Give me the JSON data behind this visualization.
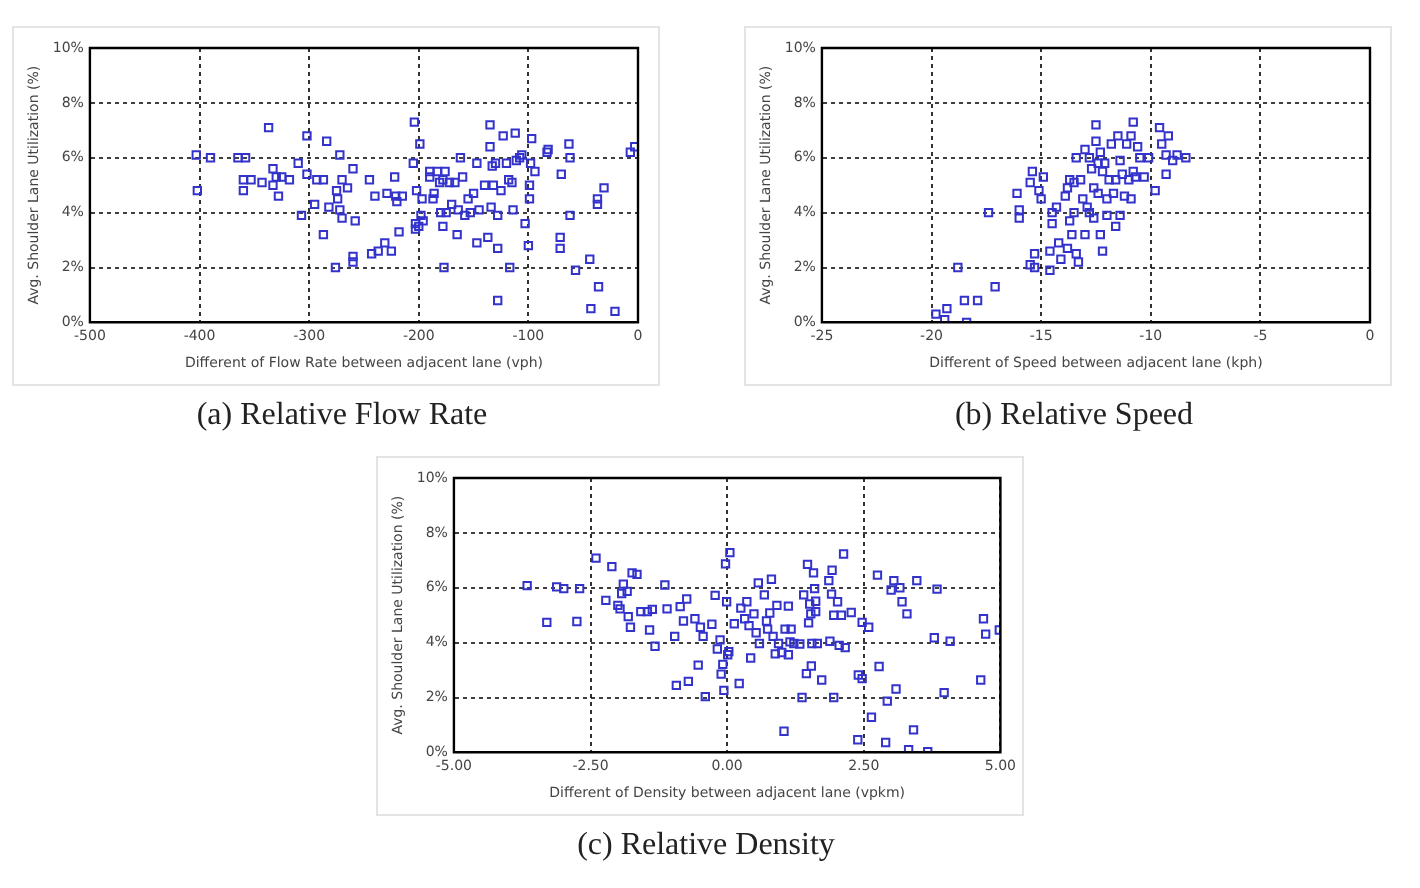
{
  "chart_data": [
    {
      "type": "scatter",
      "title": "(a) Relative Flow Rate",
      "xlabel": "Different of Flow Rate between adjacent lane (vph)",
      "ylabel": "Avg. Shoulder Lane Utilization (%)",
      "color": "#3333cc",
      "marker": "square",
      "grid": true,
      "legend": false,
      "xlim": [
        -500,
        0
      ],
      "xticks": [
        -500,
        -400,
        -300,
        -200,
        -100,
        0
      ],
      "ylim": [
        0,
        10
      ],
      "yticks": [
        {
          "value": 0,
          "label": "0%"
        },
        {
          "value": 2,
          "label": "2%"
        },
        {
          "value": 4,
          "label": "4%"
        },
        {
          "value": 6,
          "label": "6%"
        },
        {
          "value": 8,
          "label": "8%"
        },
        {
          "value": 10,
          "label": "10%"
        }
      ],
      "x": [
        -403,
        -402,
        -390,
        -365,
        -358,
        -360,
        -360,
        -353,
        -343,
        -337,
        -333,
        -333,
        -330,
        -328,
        -325,
        -318,
        -310,
        -307,
        -302,
        -302,
        -295,
        -293,
        -287,
        -287,
        -284,
        -282,
        -276,
        -275,
        -274,
        -272,
        -272,
        -270,
        -270,
        -265,
        -260,
        -260,
        -260,
        -258,
        -245,
        -243,
        -240,
        -237,
        -231,
        -229,
        -225,
        -222,
        -221,
        -220,
        -218,
        -215,
        -205,
        -204,
        -203,
        -203,
        -202,
        -200,
        -199,
        -198,
        -197,
        -196,
        -190,
        -190,
        -187,
        -186,
        -183,
        -181,
        -180,
        -178,
        -178,
        -177,
        -176,
        -175,
        -172,
        -170,
        -167,
        -165,
        -164,
        -162,
        -160,
        -158,
        -155,
        -153,
        -150,
        -147,
        -147,
        -145,
        -140,
        -137,
        -135,
        -135,
        -134,
        -133,
        -132,
        -130,
        -128,
        -128,
        -128,
        -125,
        -123,
        -120,
        -118,
        -117,
        -115,
        -114,
        -112,
        -111,
        -108,
        -106,
        -103,
        -100,
        -99,
        -99,
        -98,
        -97,
        -94,
        -83,
        -82,
        -70,
        -71,
        -71,
        -63,
        -62,
        -62,
        -57,
        -44,
        -43,
        -37,
        -37,
        -36,
        -31,
        -21,
        -7,
        -3
      ],
      "values": [
        6.1,
        4.8,
        6.0,
        6.0,
        6.0,
        4.8,
        5.2,
        5.2,
        5.1,
        7.1,
        5.6,
        5.0,
        5.3,
        4.6,
        5.3,
        5.2,
        5.8,
        3.9,
        6.8,
        5.4,
        4.3,
        5.2,
        5.2,
        3.2,
        6.6,
        4.2,
        2.0,
        4.8,
        4.5,
        6.1,
        4.1,
        3.8,
        5.2,
        4.9,
        5.6,
        2.4,
        2.2,
        3.7,
        5.2,
        2.5,
        4.6,
        2.6,
        2.9,
        4.7,
        2.6,
        5.3,
        4.6,
        4.4,
        3.3,
        4.6,
        5.8,
        7.3,
        3.6,
        3.4,
        4.8,
        3.5,
        6.5,
        3.9,
        4.5,
        3.7,
        5.3,
        5.5,
        4.5,
        4.7,
        5.5,
        5.1,
        4.0,
        3.5,
        5.2,
        2.0,
        5.5,
        4.0,
        5.1,
        4.3,
        5.1,
        3.2,
        4.1,
        6.0,
        5.3,
        3.9,
        4.5,
        4.0,
        4.7,
        5.8,
        2.9,
        4.1,
        5.0,
        3.1,
        6.4,
        7.2,
        4.2,
        5.7,
        5.0,
        5.8,
        3.9,
        2.7,
        0.8,
        4.8,
        6.8,
        5.8,
        5.2,
        2.0,
        5.1,
        4.1,
        6.9,
        5.9,
        6.0,
        6.1,
        3.6,
        2.8,
        5.0,
        4.5,
        5.8,
        6.7,
        5.5,
        6.2,
        6.3,
        5.4,
        3.1,
        2.7,
        6.5,
        6.0,
        3.9,
        1.9,
        2.3,
        0.5,
        4.5,
        4.3,
        1.3,
        4.9,
        0.4,
        6.2,
        6.4
      ]
    },
    {
      "type": "scatter",
      "title": "(b) Relative Speed",
      "xlabel": "Different of Speed between adjacent lane (kph)",
      "ylabel": "Avg. Shoulder Lane Utilization (%)",
      "color": "#3333cc",
      "marker": "square",
      "grid": true,
      "legend": false,
      "xlim": [
        -25,
        0
      ],
      "xticks": [
        -25,
        -20,
        -15,
        -10,
        -5,
        0
      ],
      "ylim": [
        0,
        10
      ],
      "yticks": [
        {
          "value": 0,
          "label": "0%"
        },
        {
          "value": 2,
          "label": "2%"
        },
        {
          "value": 4,
          "label": "4%"
        },
        {
          "value": 6,
          "label": "6%"
        },
        {
          "value": 8,
          "label": "8%"
        },
        {
          "value": 10,
          "label": "10%"
        }
      ],
      "x": [
        -19.8,
        -19.4,
        -19.3,
        -18.8,
        -18.5,
        -18.4,
        -17.9,
        -17.4,
        -17.1,
        -16.1,
        -16.0,
        -16.0,
        -15.5,
        -15.4,
        -15.5,
        -15.3,
        -15.3,
        -15.1,
        -15.0,
        -14.9,
        -14.6,
        -14.6,
        -14.5,
        -14.5,
        -14.3,
        -14.2,
        -14.1,
        -13.9,
        -13.8,
        -13.8,
        -13.7,
        -13.7,
        -13.6,
        -13.5,
        -13.5,
        -13.4,
        -13.4,
        -13.3,
        -13.2,
        -13.1,
        -13.0,
        -13.0,
        -12.9,
        -12.8,
        -12.8,
        -12.7,
        -12.6,
        -12.6,
        -12.5,
        -12.5,
        -12.4,
        -12.4,
        -12.3,
        -12.3,
        -12.2,
        -12.2,
        -12.1,
        -12.0,
        -12.0,
        -11.9,
        -11.8,
        -11.7,
        -11.6,
        -11.6,
        -11.5,
        -11.4,
        -11.4,
        -11.3,
        -11.2,
        -11.1,
        -11.0,
        -10.9,
        -10.9,
        -10.8,
        -10.8,
        -10.7,
        -10.6,
        -10.5,
        -10.3,
        -10.1,
        -9.8,
        -9.6,
        -9.5,
        -9.3,
        -9.3,
        -9.2,
        -9.0,
        -8.8,
        -8.4
      ],
      "values": [
        0.3,
        0.1,
        0.5,
        2.0,
        0.8,
        0.0,
        0.8,
        4.0,
        1.3,
        4.7,
        4.1,
        3.8,
        5.1,
        5.5,
        2.1,
        2.5,
        2.0,
        4.8,
        4.5,
        5.3,
        2.6,
        1.9,
        4.0,
        3.6,
        4.2,
        2.9,
        2.3,
        4.6,
        4.9,
        2.7,
        5.2,
        3.7,
        3.2,
        5.1,
        4.0,
        6.0,
        2.5,
        2.2,
        5.2,
        4.5,
        6.3,
        3.2,
        4.2,
        6.0,
        4.0,
        5.6,
        4.9,
        3.8,
        7.2,
        6.6,
        5.8,
        4.7,
        6.2,
        3.2,
        5.5,
        2.6,
        5.8,
        4.5,
        3.9,
        5.2,
        6.5,
        4.7,
        5.2,
        3.5,
        6.8,
        5.9,
        3.9,
        5.4,
        4.6,
        6.5,
        5.2,
        6.8,
        4.5,
        7.3,
        5.5,
        5.3,
        6.4,
        6.0,
        5.3,
        6.0,
        4.8,
        7.1,
        6.5,
        6.1,
        5.4,
        6.8,
        5.9,
        6.1,
        6.0
      ]
    },
    {
      "type": "scatter",
      "title": "(c) Relative Density",
      "xlabel": "Different of Density between adjacent lane (vpkm)",
      "ylabel": "Avg. Shoulder Lane Utilization (%)",
      "color": "#3333cc",
      "marker": "square",
      "grid": true,
      "legend": false,
      "xlim": [
        -5,
        5
      ],
      "xticks": [
        {
          "value": -5,
          "label": "-5.00"
        },
        {
          "value": -2.5,
          "label": "-2.50"
        },
        {
          "value": 0,
          "label": "0.00"
        },
        {
          "value": 2.5,
          "label": "2.50"
        },
        {
          "value": 5,
          "label": "5.00"
        }
      ],
      "ylim": [
        0,
        10
      ],
      "yticks": [
        {
          "value": 0,
          "label": "0%"
        },
        {
          "value": 2,
          "label": "2%"
        },
        {
          "value": 4,
          "label": "4%"
        },
        {
          "value": 6,
          "label": "6%"
        },
        {
          "value": 8,
          "label": "8%"
        },
        {
          "value": 10,
          "label": "10%"
        }
      ],
      "x": [
        -3.66,
        -3.3,
        -3.12,
        -2.99,
        -2.75,
        -2.7,
        -2.4,
        -2.22,
        -2.11,
        -2.0,
        -1.96,
        -1.93,
        -1.9,
        -1.83,
        -1.81,
        -1.77,
        -1.74,
        -1.65,
        -1.58,
        -1.46,
        -1.42,
        -1.37,
        -1.32,
        -1.14,
        -1.1,
        -0.96,
        -0.93,
        -0.86,
        -0.8,
        -0.74,
        -0.71,
        -0.59,
        -0.53,
        -0.49,
        -0.44,
        -0.4,
        -0.28,
        -0.22,
        -0.18,
        -0.13,
        -0.11,
        -0.08,
        -0.06,
        -0.03,
        -0.01,
        0.01,
        0.03,
        0.05,
        0.13,
        0.22,
        0.25,
        0.32,
        0.36,
        0.4,
        0.43,
        0.49,
        0.53,
        0.57,
        0.59,
        0.68,
        0.72,
        0.74,
        0.78,
        0.81,
        0.84,
        0.88,
        0.91,
        0.94,
        1.0,
        1.04,
        1.06,
        1.12,
        1.12,
        1.15,
        1.17,
        1.22,
        1.33,
        1.37,
        1.4,
        1.45,
        1.47,
        1.49,
        1.51,
        1.53,
        1.54,
        1.55,
        1.58,
        1.6,
        1.62,
        1.62,
        1.65,
        1.73,
        1.86,
        1.88,
        1.91,
        1.92,
        1.95,
        1.95,
        2.02,
        2.05,
        2.09,
        2.13,
        2.16,
        2.27,
        2.39,
        2.4,
        2.47,
        2.47,
        2.59,
        2.64,
        2.75,
        2.78,
        2.9,
        2.93,
        3.0,
        3.05,
        3.09,
        3.16,
        3.2,
        3.29,
        3.32,
        3.41,
        3.47,
        3.67,
        3.84,
        3.79,
        3.97,
        4.08,
        4.64,
        4.69,
        4.73,
        4.98
      ],
      "values": [
        6.08,
        4.74,
        6.03,
        5.97,
        4.77,
        5.97,
        7.08,
        5.54,
        6.77,
        5.36,
        5.23,
        5.79,
        6.13,
        5.87,
        4.95,
        4.56,
        6.54,
        6.49,
        5.13,
        5.13,
        4.46,
        5.21,
        3.87,
        6.1,
        5.23,
        4.23,
        2.44,
        5.31,
        4.79,
        5.59,
        2.59,
        4.87,
        3.18,
        4.56,
        4.23,
        2.03,
        4.67,
        5.72,
        3.77,
        4.1,
        2.85,
        3.21,
        2.26,
        6.87,
        5.49,
        3.56,
        3.67,
        7.28,
        4.69,
        2.51,
        5.26,
        4.87,
        5.49,
        4.62,
        3.44,
        5.05,
        4.36,
        6.18,
        3.97,
        5.74,
        4.79,
        4.49,
        5.08,
        6.31,
        4.23,
        3.59,
        5.36,
        3.97,
        3.64,
        0.77,
        4.49,
        5.33,
        3.56,
        4.03,
        4.49,
        3.97,
        3.95,
        2.0,
        5.74,
        2.87,
        6.85,
        4.72,
        5.41,
        5.05,
        3.15,
        3.97,
        6.54,
        5.97,
        5.13,
        5.51,
        3.97,
        2.64,
        6.26,
        4.05,
        5.77,
        6.64,
        2.0,
        5.0,
        5.49,
        3.9,
        5.0,
        7.23,
        3.82,
        5.1,
        0.46,
        2.82,
        2.69,
        4.74,
        4.56,
        1.28,
        6.46,
        3.13,
        0.36,
        1.87,
        5.92,
        6.26,
        2.31,
        6.0,
        5.49,
        5.05,
        0.1,
        0.82,
        6.26,
        0.03,
        5.95,
        4.18,
        2.18,
        4.05,
        2.64,
        4.87,
        4.31,
        4.46
      ]
    }
  ]
}
